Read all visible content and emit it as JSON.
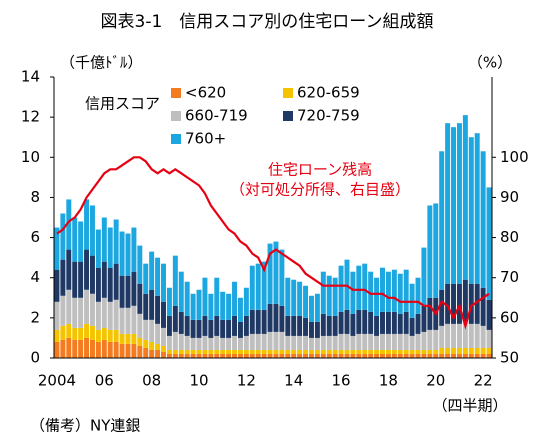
{
  "chart_data": {
    "type": "bar",
    "stacked": true,
    "title": "図表3-1　信用スコア別の住宅ローン組成額",
    "y_label": "（千億ﾄﾞﾙ）",
    "y2_label": "（%）",
    "x_label": "（四半期）",
    "legend_title": "信用スコア",
    "source": "（備考）NY連銀",
    "annotation": "（対可処分所得、右目盛）",
    "categories": [
      "2004",
      null,
      null,
      null,
      null,
      null,
      null,
      null,
      "06",
      null,
      null,
      null,
      null,
      null,
      null,
      null,
      "08",
      null,
      null,
      null,
      null,
      null,
      null,
      null,
      "10",
      null,
      null,
      null,
      null,
      null,
      null,
      null,
      "12",
      null,
      null,
      null,
      null,
      null,
      null,
      null,
      "14",
      null,
      null,
      null,
      null,
      null,
      null,
      null,
      "16",
      null,
      null,
      null,
      null,
      null,
      null,
      null,
      "18",
      null,
      null,
      null,
      null,
      null,
      null,
      null,
      "20",
      null,
      null,
      null,
      null,
      null,
      null,
      null,
      "22",
      null
    ],
    "ylim": [
      0,
      14
    ],
    "yticks": [
      0,
      2,
      4,
      6,
      8,
      10,
      12,
      14
    ],
    "y2lim": [
      50,
      120
    ],
    "y2ticks": [
      50,
      60,
      70,
      80,
      90,
      100
    ],
    "series": [
      {
        "name": "<620",
        "color": "#f47b20",
        "values": [
          0.8,
          0.9,
          1.0,
          0.9,
          0.9,
          1.0,
          0.9,
          0.8,
          0.9,
          0.8,
          0.8,
          0.7,
          0.7,
          0.7,
          0.6,
          0.5,
          0.4,
          0.4,
          0.3,
          0.2,
          0.2,
          0.2,
          0.2,
          0.2,
          0.2,
          0.2,
          0.2,
          0.2,
          0.2,
          0.2,
          0.2,
          0.2,
          0.2,
          0.2,
          0.2,
          0.2,
          0.2,
          0.2,
          0.2,
          0.2,
          0.2,
          0.2,
          0.2,
          0.2,
          0.2,
          0.2,
          0.2,
          0.2,
          0.2,
          0.2,
          0.2,
          0.2,
          0.2,
          0.2,
          0.2,
          0.2,
          0.2,
          0.2,
          0.2,
          0.2,
          0.2,
          0.2,
          0.2,
          0.2,
          0.2,
          0.2,
          0.2,
          0.2,
          0.2,
          0.2,
          0.2,
          0.2,
          0.2,
          0.2
        ]
      },
      {
        "name": "620-659",
        "color": "#f5c400",
        "values": [
          0.6,
          0.7,
          0.7,
          0.6,
          0.6,
          0.7,
          0.7,
          0.6,
          0.6,
          0.6,
          0.6,
          0.5,
          0.5,
          0.5,
          0.4,
          0.4,
          0.4,
          0.3,
          0.3,
          0.2,
          0.2,
          0.2,
          0.2,
          0.2,
          0.2,
          0.2,
          0.2,
          0.2,
          0.2,
          0.2,
          0.2,
          0.2,
          0.2,
          0.2,
          0.2,
          0.2,
          0.2,
          0.2,
          0.2,
          0.2,
          0.2,
          0.2,
          0.2,
          0.2,
          0.2,
          0.2,
          0.2,
          0.2,
          0.2,
          0.2,
          0.2,
          0.2,
          0.2,
          0.2,
          0.2,
          0.2,
          0.2,
          0.2,
          0.2,
          0.2,
          0.2,
          0.2,
          0.2,
          0.2,
          0.2,
          0.3,
          0.3,
          0.3,
          0.3,
          0.3,
          0.3,
          0.3,
          0.3,
          0.3
        ]
      },
      {
        "name": "660-719",
        "color": "#bfbfbf",
        "values": [
          1.4,
          1.5,
          1.7,
          1.5,
          1.5,
          1.7,
          1.6,
          1.4,
          1.5,
          1.4,
          1.5,
          1.3,
          1.3,
          1.4,
          1.2,
          1.0,
          1.1,
          1.0,
          0.9,
          0.7,
          0.9,
          0.8,
          0.7,
          0.6,
          0.6,
          0.7,
          0.6,
          0.7,
          0.6,
          0.6,
          0.7,
          0.6,
          0.7,
          0.8,
          0.8,
          0.8,
          0.9,
          0.9,
          0.9,
          0.7,
          0.7,
          0.7,
          0.7,
          0.6,
          0.6,
          0.7,
          0.7,
          0.7,
          0.8,
          0.8,
          0.7,
          0.8,
          0.8,
          0.8,
          0.7,
          0.8,
          0.8,
          0.8,
          0.8,
          0.8,
          0.7,
          0.8,
          0.9,
          1.0,
          1.0,
          1.1,
          1.2,
          1.2,
          1.2,
          1.3,
          1.2,
          1.2,
          1.1,
          0.9
        ]
      },
      {
        "name": "720-759",
        "color": "#1f3864",
        "values": [
          1.6,
          1.8,
          2.0,
          1.8,
          1.8,
          2.0,
          1.9,
          1.7,
          1.8,
          1.7,
          1.8,
          1.6,
          1.6,
          1.7,
          1.5,
          1.3,
          1.5,
          1.4,
          1.3,
          1.0,
          1.3,
          1.1,
          1.0,
          0.9,
          0.9,
          1.0,
          0.9,
          1.0,
          0.9,
          0.9,
          1.0,
          0.8,
          1.0,
          1.2,
          1.2,
          1.2,
          1.4,
          1.4,
          1.3,
          1.0,
          1.0,
          1.0,
          0.9,
          0.8,
          0.8,
          1.1,
          1.0,
          1.0,
          1.1,
          1.2,
          1.1,
          1.2,
          1.2,
          1.1,
          1.0,
          1.1,
          1.1,
          1.1,
          1.0,
          1.1,
          0.9,
          1.0,
          1.3,
          1.6,
          1.6,
          1.8,
          2.0,
          2.0,
          2.0,
          2.1,
          2.0,
          2.0,
          1.9,
          1.5
        ]
      },
      {
        "name": "760+",
        "color": "#1ca7e0",
        "values": [
          2.1,
          2.3,
          2.5,
          2.2,
          2.0,
          2.5,
          2.5,
          1.9,
          2.2,
          2.0,
          2.2,
          2.2,
          2.1,
          2.2,
          1.9,
          1.5,
          1.9,
          1.9,
          1.9,
          1.4,
          2.5,
          2.0,
          1.7,
          1.3,
          1.5,
          1.9,
          1.3,
          1.9,
          1.4,
          1.3,
          1.7,
          1.2,
          1.4,
          2.2,
          2.3,
          2.4,
          3.0,
          3.1,
          2.8,
          1.9,
          1.8,
          1.7,
          1.6,
          1.3,
          1.4,
          2.1,
          2.0,
          1.9,
          2.3,
          2.5,
          2.1,
          2.2,
          2.3,
          2.0,
          1.9,
          2.2,
          2.0,
          2.1,
          2.0,
          2.1,
          1.7,
          1.8,
          2.9,
          4.6,
          4.7,
          6.9,
          8.0,
          7.8,
          8.0,
          8.2,
          7.3,
          7.5,
          6.8,
          5.6
        ]
      },
      {
        "name": "住宅ローン残高",
        "color": "#e60012",
        "type": "line",
        "axis": "y2",
        "values": [
          81,
          82,
          84,
          85,
          87,
          90,
          92,
          94,
          96,
          97,
          97,
          98,
          99,
          100,
          100,
          99,
          97,
          96,
          97,
          96,
          97,
          96,
          95,
          94,
          93,
          91,
          88,
          86,
          84,
          82,
          81,
          79,
          78,
          76,
          75,
          72,
          76,
          77,
          76,
          75,
          74,
          73,
          71,
          70,
          69,
          68,
          68,
          68,
          68,
          68,
          67,
          67,
          67,
          66,
          66,
          66,
          65,
          65,
          64,
          64,
          64,
          64,
          63,
          63,
          61,
          64,
          63,
          60,
          63,
          58,
          63,
          64,
          65,
          66
        ]
      }
    ]
  }
}
